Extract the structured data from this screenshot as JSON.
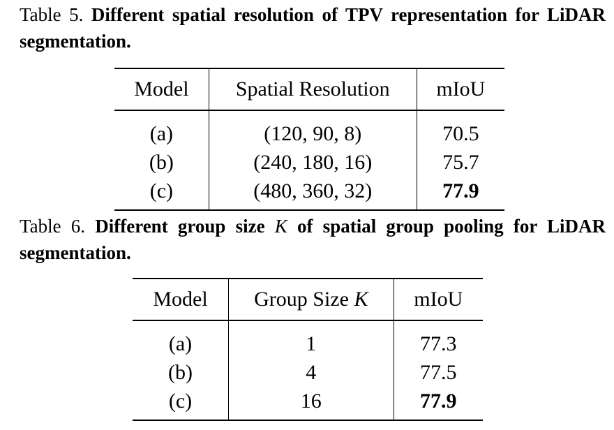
{
  "table5": {
    "caption_label": "Table 5.",
    "caption_text": "Different spatial resolution of TPV representation for LiDAR segmentation.",
    "headers": [
      "Model",
      "Spatial Resolution",
      "mIoU"
    ],
    "rows": [
      {
        "model": "(a)",
        "resolution": "(120, 90, 8)",
        "miou": "70.5"
      },
      {
        "model": "(b)",
        "resolution": "(240, 180, 16)",
        "miou": "75.7"
      },
      {
        "model": "(c)",
        "resolution": "(480, 360, 32)",
        "miou": "77.9"
      }
    ]
  },
  "table6": {
    "caption_label": "Table 6.",
    "caption_text_before": "Different group size",
    "caption_var": "K",
    "caption_text_after": "of spatial group pooling for LiDAR segmentation.",
    "headers": [
      "Model",
      "Group Size",
      "K",
      "mIoU"
    ],
    "rows": [
      {
        "model": "(a)",
        "group_size": "1",
        "miou": "77.3"
      },
      {
        "model": "(b)",
        "group_size": "4",
        "miou": "77.5"
      },
      {
        "model": "(c)",
        "group_size": "16",
        "miou": "77.9"
      }
    ]
  }
}
